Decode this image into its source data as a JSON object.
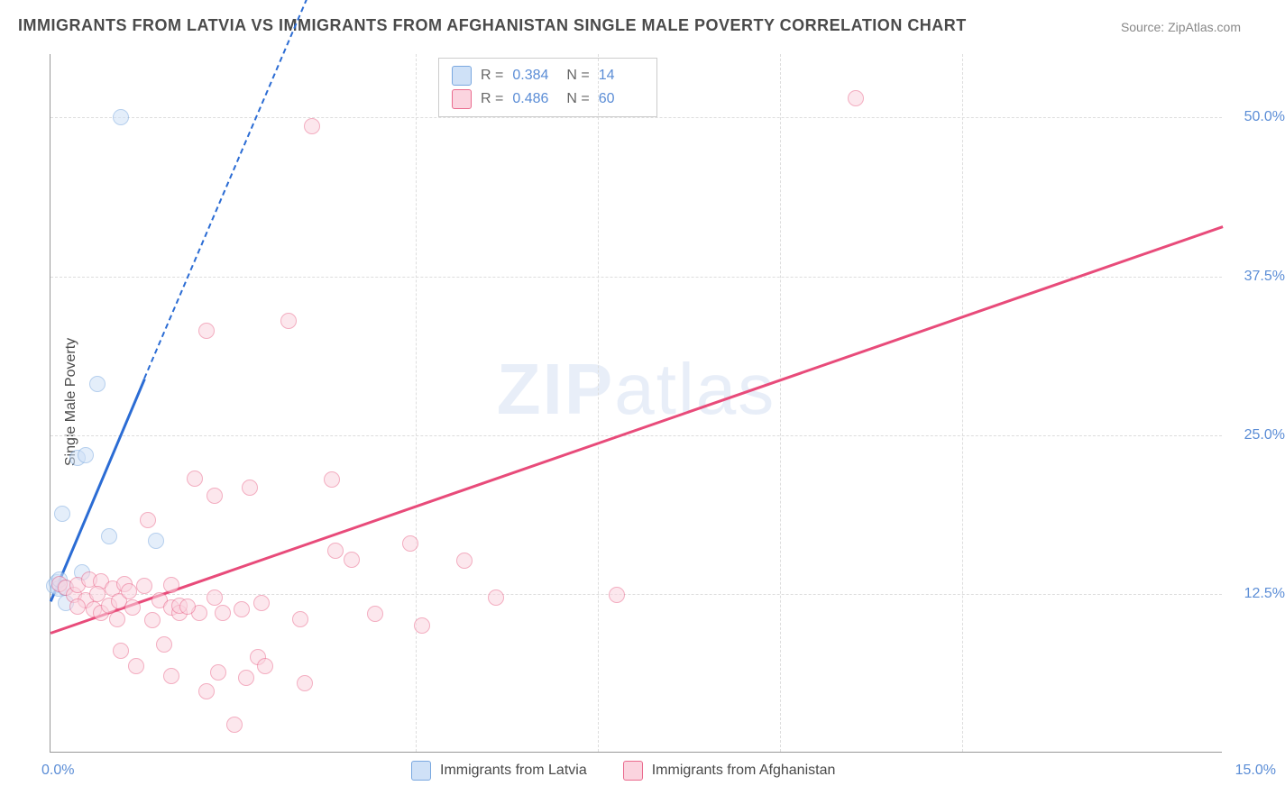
{
  "title": "IMMIGRANTS FROM LATVIA VS IMMIGRANTS FROM AFGHANISTAN SINGLE MALE POVERTY CORRELATION CHART",
  "source_prefix": "Source: ",
  "source_name": "ZipAtlas.com",
  "ylabel": "Single Male Poverty",
  "watermark_bold": "ZIP",
  "watermark_rest": "atlas",
  "chart": {
    "type": "scatter",
    "xlim": [
      0.0,
      15.0
    ],
    "ylim": [
      0.0,
      55.0
    ],
    "yticks": [
      12.5,
      25.0,
      37.5,
      50.0
    ],
    "ytick_labels": [
      "12.5%",
      "25.0%",
      "37.5%",
      "50.0%"
    ],
    "xticks_labels": {
      "0": "0.0%",
      "15": "15.0%"
    },
    "vgrid_at": [
      4.67,
      7.0,
      9.33,
      11.67
    ],
    "background_color": "#ffffff",
    "grid_color": "#dddddd",
    "axis_color": "#999999",
    "tick_color": "#5b8dd6",
    "marker_radius": 9,
    "series": [
      {
        "name": "Immigrants from Latvia",
        "fill": "#cfe1f7",
        "stroke": "#7aa8e0",
        "fill_opacity": 0.55,
        "R": "0.384",
        "N": "14",
        "trend": {
          "color": "#2b6cd4",
          "solid_x": [
            0.0,
            1.2
          ],
          "solid_y": [
            12.0,
            29.5
          ],
          "dash_to": [
            3.6,
            64.0
          ]
        },
        "points": [
          [
            0.05,
            13.1
          ],
          [
            0.08,
            13.4
          ],
          [
            0.1,
            12.9
          ],
          [
            0.12,
            13.6
          ],
          [
            0.18,
            13.0
          ],
          [
            0.4,
            14.2
          ],
          [
            0.15,
            18.8
          ],
          [
            0.35,
            23.2
          ],
          [
            0.45,
            23.4
          ],
          [
            0.75,
            17.0
          ],
          [
            1.35,
            16.7
          ],
          [
            0.6,
            29.0
          ],
          [
            0.9,
            50.0
          ],
          [
            0.2,
            11.8
          ]
        ]
      },
      {
        "name": "Immigrants from Afghanistan",
        "fill": "#fbd4df",
        "stroke": "#ea6b8e",
        "fill_opacity": 0.55,
        "R": "0.486",
        "N": "60",
        "trend": {
          "color": "#e84b7a",
          "solid_x": [
            0.0,
            15.0
          ],
          "solid_y": [
            9.5,
            41.5
          ]
        },
        "points": [
          [
            0.12,
            13.3
          ],
          [
            0.2,
            13.0
          ],
          [
            0.3,
            12.4
          ],
          [
            0.35,
            13.2
          ],
          [
            0.45,
            12.0
          ],
          [
            0.5,
            13.6
          ],
          [
            0.55,
            11.3
          ],
          [
            0.65,
            11.0
          ],
          [
            0.65,
            13.5
          ],
          [
            0.75,
            11.6
          ],
          [
            0.8,
            12.9
          ],
          [
            0.85,
            10.5
          ],
          [
            0.88,
            11.9
          ],
          [
            0.9,
            8.0
          ],
          [
            0.95,
            13.3
          ],
          [
            1.05,
            11.4
          ],
          [
            1.1,
            6.8
          ],
          [
            1.2,
            13.1
          ],
          [
            1.25,
            18.3
          ],
          [
            1.3,
            10.4
          ],
          [
            1.4,
            12.0
          ],
          [
            1.45,
            8.5
          ],
          [
            1.55,
            11.4
          ],
          [
            1.55,
            13.2
          ],
          [
            1.55,
            6.0
          ],
          [
            1.65,
            11.0
          ],
          [
            1.65,
            11.6
          ],
          [
            1.85,
            21.6
          ],
          [
            1.9,
            11.0
          ],
          [
            2.0,
            4.8
          ],
          [
            2.0,
            33.2
          ],
          [
            2.1,
            12.2
          ],
          [
            2.1,
            20.2
          ],
          [
            2.15,
            6.3
          ],
          [
            2.2,
            11.0
          ],
          [
            2.35,
            2.2
          ],
          [
            2.45,
            11.3
          ],
          [
            2.5,
            5.9
          ],
          [
            2.55,
            20.9
          ],
          [
            2.65,
            7.5
          ],
          [
            2.7,
            11.8
          ],
          [
            2.75,
            6.8
          ],
          [
            3.05,
            34.0
          ],
          [
            3.2,
            10.5
          ],
          [
            3.25,
            5.5
          ],
          [
            3.35,
            49.3
          ],
          [
            3.6,
            21.5
          ],
          [
            3.65,
            15.9
          ],
          [
            3.85,
            15.2
          ],
          [
            4.15,
            10.9
          ],
          [
            4.6,
            16.5
          ],
          [
            4.75,
            10.0
          ],
          [
            5.3,
            15.1
          ],
          [
            5.7,
            12.2
          ],
          [
            7.25,
            12.4
          ],
          [
            10.3,
            51.5
          ],
          [
            0.35,
            11.5
          ],
          [
            0.6,
            12.5
          ],
          [
            1.0,
            12.7
          ],
          [
            1.75,
            11.5
          ]
        ]
      }
    ]
  },
  "legend_top": {
    "r_label": "R =",
    "n_label": "N ="
  },
  "legend_bottom": [
    "Immigrants from Latvia",
    "Immigrants from Afghanistan"
  ]
}
